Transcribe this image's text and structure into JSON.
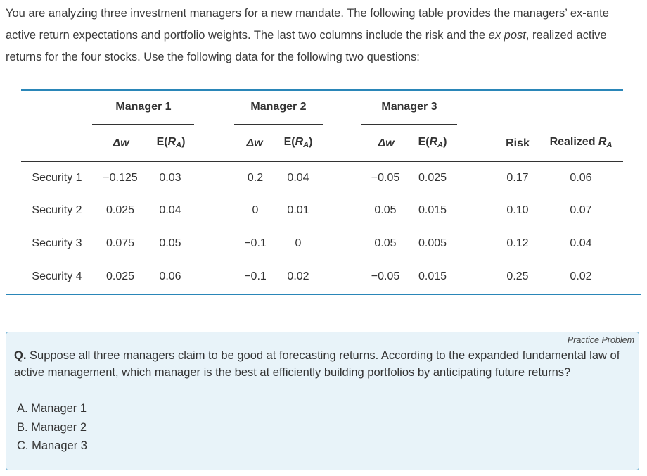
{
  "intro": {
    "part1": "You are analyzing three investment managers for a new mandate. The following table provides the managers’ ex-ante active return expectations and portfolio weights. The last two columns include the risk and the ",
    "part2": "ex post",
    "part3": ", realized active returns for the four stocks. Use the following data for the following two questions:"
  },
  "table": {
    "groups": [
      "Manager 1",
      "Manager 2",
      "Manager 3"
    ],
    "sub_headers": {
      "dw": "Δw",
      "er_prefix": "E(",
      "er_var": "R",
      "er_sub": "A",
      "er_suffix": ")",
      "risk": "Risk",
      "realized_prefix": "Realized ",
      "realized_var": "R",
      "realized_sub": "A"
    },
    "rows": [
      {
        "label": "Security 1",
        "m1_dw": "−0.125",
        "m1_er": "0.03",
        "m2_dw": "0.2",
        "m2_er": "0.04",
        "m3_dw": "−0.05",
        "m3_er": "0.025",
        "risk": "0.17",
        "realized": "0.06"
      },
      {
        "label": "Security 2",
        "m1_dw": "0.025",
        "m1_er": "0.04",
        "m2_dw": "0",
        "m2_er": "0.01",
        "m3_dw": "0.05",
        "m3_er": "0.015",
        "risk": "0.10",
        "realized": "0.07"
      },
      {
        "label": "Security 3",
        "m1_dw": "0.075",
        "m1_er": "0.05",
        "m2_dw": "−0.1",
        "m2_er": "0",
        "m3_dw": "0.05",
        "m3_er": "0.005",
        "risk": "0.12",
        "realized": "0.04"
      },
      {
        "label": "Security 4",
        "m1_dw": "0.025",
        "m1_er": "0.06",
        "m2_dw": "−0.1",
        "m2_er": "0.02",
        "m3_dw": "−0.05",
        "m3_er": "0.015",
        "risk": "0.25",
        "realized": "0.02"
      }
    ]
  },
  "practice": {
    "label": "Practice Problem",
    "q_prefix": "Q.",
    "question": " Suppose all three managers claim to be good at forecasting returns. According to the expanded fundamental law of active management, which manager is the best at efficiently building portfolios by anticipating future returns?",
    "options": [
      "A. Manager 1",
      "B. Manager 2",
      "C. Manager 3"
    ]
  }
}
